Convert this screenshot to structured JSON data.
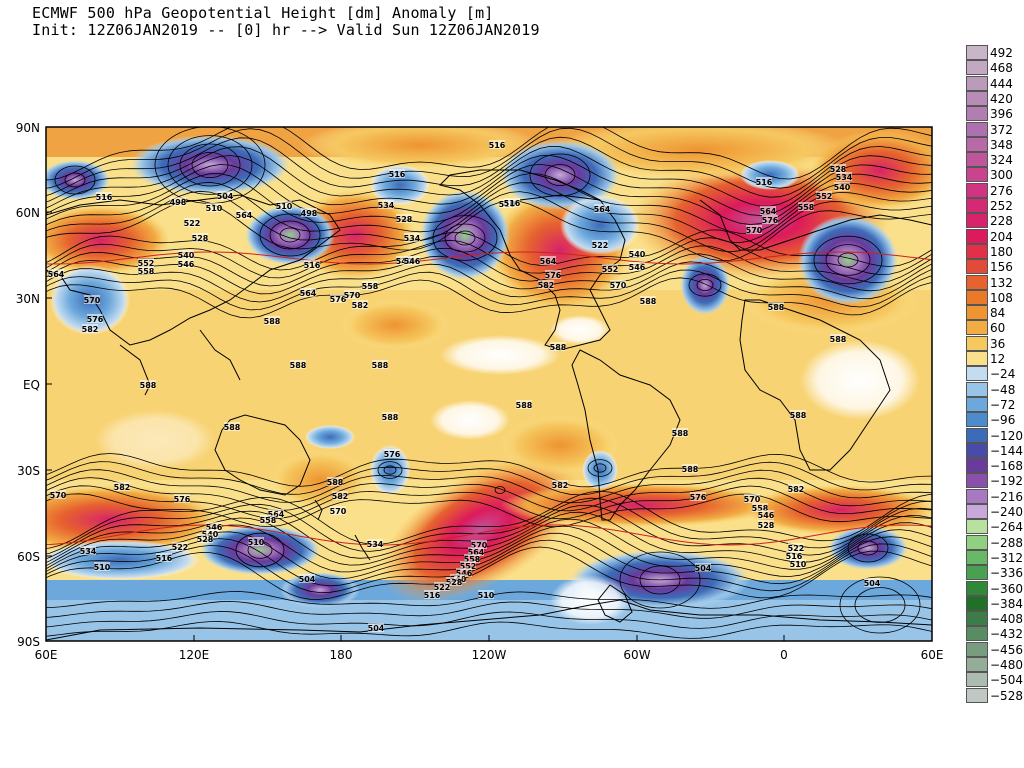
{
  "title": {
    "line1": "ECMWF 500 hPa Geopotential Height [dm] Anomaly [m]",
    "line2": "Init: 12Z06JAN2019 -- [0] hr --> Valid Sun 12Z06JAN2019"
  },
  "axes": {
    "y_ticks": [
      "90N",
      "60N",
      "30N",
      "EQ",
      "30S",
      "60S",
      "90S"
    ],
    "x_ticks": [
      "60E",
      "120E",
      "180",
      "120W",
      "60W",
      "0",
      "60E"
    ]
  },
  "colorbar": {
    "labels": [
      "492",
      "468",
      "444",
      "420",
      "396",
      "372",
      "348",
      "324",
      "300",
      "276",
      "252",
      "228",
      "204",
      "180",
      "156",
      "132",
      "108",
      "84",
      "60",
      "36",
      "12",
      "−24",
      "−48",
      "−72",
      "−96",
      "−120",
      "−144",
      "−168",
      "−192",
      "−216",
      "−240",
      "−264",
      "−288",
      "−312",
      "−336",
      "−360",
      "−384",
      "−408",
      "−432",
      "−456",
      "−480",
      "−504",
      "−528"
    ],
    "colors": [
      "#c8b6c8",
      "#c2a8c2",
      "#bc9abc",
      "#b88cb8",
      "#b27eb2",
      "#ae70ae",
      "#b86aa6",
      "#c0569a",
      "#c8448e",
      "#d03482",
      "#d42a76",
      "#d8226a",
      "#dc1a5c",
      "#e0304a",
      "#e24a3a",
      "#e6622e",
      "#ea7a2a",
      "#ee9430",
      "#f2ac44",
      "#f6c860",
      "#fae08a",
      "#c4dcf0",
      "#98c4e8",
      "#6ca8dc",
      "#4c8ccc",
      "#3c6cb8",
      "#4a4aa8",
      "#6a3a9c",
      "#8a50ac",
      "#a878c0",
      "#c8a8d8",
      "#b8e0a0",
      "#90d080",
      "#68b868",
      "#48a050",
      "#308838",
      "#207028",
      "#3c7c48",
      "#5a8c64",
      "#789c80",
      "#94ac98",
      "#acbcb0",
      "#c0c8c4"
    ]
  },
  "map_labels": [
    {
      "t": "516",
      "x": 497,
      "y": 146
    },
    {
      "t": "516",
      "x": 397,
      "y": 175
    },
    {
      "t": "516",
      "x": 764,
      "y": 183
    },
    {
      "t": "516",
      "x": 104,
      "y": 198
    },
    {
      "t": "498",
      "x": 178,
      "y": 203
    },
    {
      "t": "504",
      "x": 225,
      "y": 197
    },
    {
      "t": "510",
      "x": 214,
      "y": 209
    },
    {
      "t": "522",
      "x": 192,
      "y": 224
    },
    {
      "t": "528",
      "x": 200,
      "y": 239
    },
    {
      "t": "540",
      "x": 186,
      "y": 256
    },
    {
      "t": "546",
      "x": 186,
      "y": 265
    },
    {
      "t": "552",
      "x": 146,
      "y": 264
    },
    {
      "t": "558",
      "x": 146,
      "y": 272
    },
    {
      "t": "570",
      "x": 92,
      "y": 301
    },
    {
      "t": "576",
      "x": 95,
      "y": 320
    },
    {
      "t": "582",
      "x": 90,
      "y": 330
    },
    {
      "t": "564",
      "x": 56,
      "y": 275
    },
    {
      "t": "564",
      "x": 244,
      "y": 216
    },
    {
      "t": "510",
      "x": 284,
      "y": 207
    },
    {
      "t": "498",
      "x": 309,
      "y": 214
    },
    {
      "t": "516",
      "x": 312,
      "y": 266
    },
    {
      "t": "564",
      "x": 308,
      "y": 294
    },
    {
      "t": "576",
      "x": 338,
      "y": 300
    },
    {
      "t": "570",
      "x": 352,
      "y": 296
    },
    {
      "t": "582",
      "x": 360,
      "y": 306
    },
    {
      "t": "558",
      "x": 370,
      "y": 287
    },
    {
      "t": "534",
      "x": 412,
      "y": 239
    },
    {
      "t": "540",
      "x": 404,
      "y": 262
    },
    {
      "t": "546",
      "x": 412,
      "y": 262
    },
    {
      "t": "534",
      "x": 386,
      "y": 206
    },
    {
      "t": "528",
      "x": 404,
      "y": 220
    },
    {
      "t": "510",
      "x": 507,
      "y": 205
    },
    {
      "t": "588",
      "x": 272,
      "y": 322
    },
    {
      "t": "588",
      "x": 298,
      "y": 366
    },
    {
      "t": "588",
      "x": 380,
      "y": 366
    },
    {
      "t": "588",
      "x": 148,
      "y": 386
    },
    {
      "t": "588",
      "x": 232,
      "y": 428
    },
    {
      "t": "588",
      "x": 390,
      "y": 418
    },
    {
      "t": "588",
      "x": 524,
      "y": 406
    },
    {
      "t": "588",
      "x": 558,
      "y": 348
    },
    {
      "t": "588",
      "x": 648,
      "y": 302
    },
    {
      "t": "588",
      "x": 776,
      "y": 308
    },
    {
      "t": "588",
      "x": 838,
      "y": 340
    },
    {
      "t": "588",
      "x": 798,
      "y": 416
    },
    {
      "t": "588",
      "x": 680,
      "y": 434
    },
    {
      "t": "588",
      "x": 690,
      "y": 470
    },
    {
      "t": "582",
      "x": 796,
      "y": 490
    },
    {
      "t": "582",
      "x": 560,
      "y": 486
    },
    {
      "t": "576",
      "x": 698,
      "y": 498
    },
    {
      "t": "570",
      "x": 752,
      "y": 500
    },
    {
      "t": "564",
      "x": 548,
      "y": 262
    },
    {
      "t": "576",
      "x": 553,
      "y": 276
    },
    {
      "t": "582",
      "x": 546,
      "y": 286
    },
    {
      "t": "552",
      "x": 610,
      "y": 270
    },
    {
      "t": "546",
      "x": 637,
      "y": 268
    },
    {
      "t": "540",
      "x": 637,
      "y": 255
    },
    {
      "t": "522",
      "x": 600,
      "y": 246
    },
    {
      "t": "570",
      "x": 618,
      "y": 286
    },
    {
      "t": "564",
      "x": 602,
      "y": 210
    },
    {
      "t": "516",
      "x": 512,
      "y": 204
    },
    {
      "t": "570",
      "x": 754,
      "y": 231
    },
    {
      "t": "564",
      "x": 768,
      "y": 212
    },
    {
      "t": "576",
      "x": 770,
      "y": 221
    },
    {
      "t": "558",
      "x": 806,
      "y": 208
    },
    {
      "t": "552",
      "x": 824,
      "y": 197
    },
    {
      "t": "540",
      "x": 842,
      "y": 188
    },
    {
      "t": "534",
      "x": 844,
      "y": 178
    },
    {
      "t": "528",
      "x": 838,
      "y": 170
    },
    {
      "t": "576",
      "x": 392,
      "y": 455
    },
    {
      "t": "582",
      "x": 122,
      "y": 488
    },
    {
      "t": "576",
      "x": 182,
      "y": 500
    },
    {
      "t": "570",
      "x": 58,
      "y": 496
    },
    {
      "t": "588",
      "x": 335,
      "y": 483
    },
    {
      "t": "582",
      "x": 340,
      "y": 497
    },
    {
      "t": "570",
      "x": 338,
      "y": 512
    },
    {
      "t": "564",
      "x": 276,
      "y": 515
    },
    {
      "t": "558",
      "x": 268,
      "y": 521
    },
    {
      "t": "546",
      "x": 214,
      "y": 528
    },
    {
      "t": "540",
      "x": 210,
      "y": 535
    },
    {
      "t": "528",
      "x": 205,
      "y": 540
    },
    {
      "t": "522",
      "x": 180,
      "y": 548
    },
    {
      "t": "516",
      "x": 164,
      "y": 559
    },
    {
      "t": "510",
      "x": 102,
      "y": 568
    },
    {
      "t": "534",
      "x": 88,
      "y": 552
    },
    {
      "t": "510",
      "x": 256,
      "y": 543
    },
    {
      "t": "534",
      "x": 375,
      "y": 545
    },
    {
      "t": "504",
      "x": 307,
      "y": 580
    },
    {
      "t": "570",
      "x": 479,
      "y": 546
    },
    {
      "t": "564",
      "x": 476,
      "y": 553
    },
    {
      "t": "558",
      "x": 472,
      "y": 560
    },
    {
      "t": "552",
      "x": 468,
      "y": 567
    },
    {
      "t": "546",
      "x": 464,
      "y": 574
    },
    {
      "t": "540",
      "x": 458,
      "y": 580
    },
    {
      "t": "528",
      "x": 454,
      "y": 583
    },
    {
      "t": "522",
      "x": 442,
      "y": 588
    },
    {
      "t": "516",
      "x": 432,
      "y": 596
    },
    {
      "t": "510",
      "x": 486,
      "y": 596
    },
    {
      "t": "504",
      "x": 376,
      "y": 629
    },
    {
      "t": "504",
      "x": 703,
      "y": 569
    },
    {
      "t": "558",
      "x": 760,
      "y": 509
    },
    {
      "t": "546",
      "x": 766,
      "y": 516
    },
    {
      "t": "528",
      "x": 766,
      "y": 526
    },
    {
      "t": "522",
      "x": 796,
      "y": 549
    },
    {
      "t": "516",
      "x": 794,
      "y": 557
    },
    {
      "t": "510",
      "x": 798,
      "y": 565
    },
    {
      "t": "504",
      "x": 872,
      "y": 584
    }
  ]
}
